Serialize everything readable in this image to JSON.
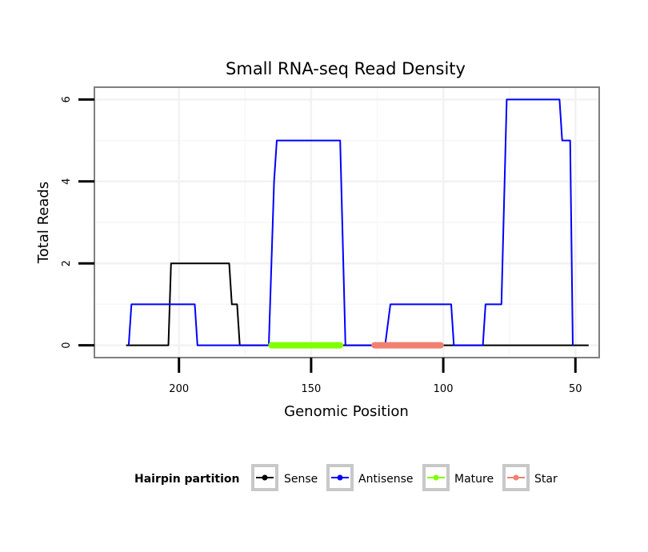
{
  "chart_data": {
    "type": "line",
    "title": "Small RNA-seq Read Density",
    "xlabel": "Genomic Position",
    "ylabel": "Total Reads",
    "x_reversed": true,
    "xlim": [
      232,
      41
    ],
    "ylim": [
      -0.3,
      6.3
    ],
    "x_ticks": [
      200,
      150,
      100,
      50
    ],
    "y_ticks": [
      0,
      2,
      4,
      6
    ],
    "grid": true,
    "legend": {
      "title": "Hairpin partition",
      "position": "bottom",
      "items": [
        {
          "label": "Sense",
          "color": "#000000"
        },
        {
          "label": "Antisense",
          "color": "#0000ff"
        },
        {
          "label": "Mature",
          "color": "#80ff00"
        },
        {
          "label": "Star",
          "color": "#f08070"
        }
      ]
    },
    "series": [
      {
        "name": "Sense",
        "color": "#000000",
        "points": [
          [
            220,
            0
          ],
          [
            204,
            0
          ],
          [
            203,
            2
          ],
          [
            181,
            2
          ],
          [
            180,
            1
          ],
          [
            178,
            1
          ],
          [
            177,
            0
          ],
          [
            45,
            0
          ]
        ]
      },
      {
        "name": "Antisense",
        "color": "#0000ff",
        "points": [
          [
            219,
            0
          ],
          [
            218,
            1
          ],
          [
            194,
            1
          ],
          [
            193,
            0
          ],
          [
            177,
            0
          ],
          [
            166,
            0
          ],
          [
            164,
            4
          ],
          [
            163,
            5
          ],
          [
            139,
            5
          ],
          [
            137,
            0
          ],
          [
            122,
            0
          ],
          [
            120,
            1
          ],
          [
            97,
            1
          ],
          [
            96,
            0
          ],
          [
            85,
            0
          ],
          [
            84,
            1
          ],
          [
            78,
            1
          ],
          [
            76,
            6
          ],
          [
            56,
            6
          ],
          [
            55,
            5
          ],
          [
            52,
            5
          ],
          [
            51,
            0
          ]
        ]
      },
      {
        "name": "Mature",
        "color": "#80ff00",
        "points": [
          [
            165,
            0
          ],
          [
            139,
            0
          ]
        ]
      },
      {
        "name": "Star",
        "color": "#f08070",
        "points": [
          [
            126,
            0
          ],
          [
            101,
            0
          ]
        ]
      }
    ]
  }
}
